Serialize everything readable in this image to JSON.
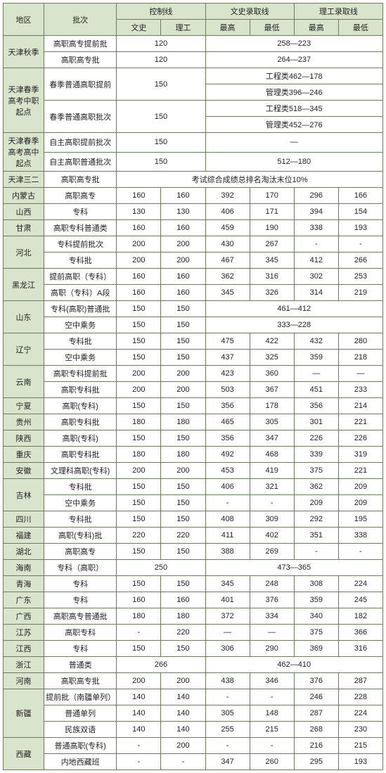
{
  "headers": {
    "region": "地区",
    "batch": "批次",
    "control": "控制线",
    "liberal_line": "文史录取线",
    "science_line": "理工录取线",
    "liberal": "文史",
    "science": "理工",
    "high": "最高",
    "low": "最低"
  },
  "colors": {
    "header_bg": "#d9e4cd",
    "border": "#6c7a5d",
    "text": "#222222",
    "bg": "#ffffff"
  },
  "font_size": 11,
  "rows": [
    {
      "type": "region",
      "region": "天津秋季",
      "rowspan": 2,
      "batch": "高职高专提前批",
      "ctrl_span": 2,
      "ctrl": "120",
      "lib_span": 4,
      "lib": "258—223"
    },
    {
      "type": "sub",
      "batch": "高职高专批",
      "ctrl_span": 2,
      "ctrl": "120",
      "lib_span": 4,
      "lib": "264—237"
    },
    {
      "type": "region",
      "region": "天津春季高考中职起点",
      "rowspan": 4,
      "batch": "春季普通高职提前",
      "batch_rs": 2,
      "ctrl_span": 2,
      "ctrl": "150",
      "ctrl_rs": 2,
      "lib_span": 4,
      "lib": "工程类462—178"
    },
    {
      "type": "libonly",
      "lib_span": 4,
      "lib": "管理类396—246"
    },
    {
      "type": "sub",
      "batch": "春季普通高职批次",
      "batch_rs": 2,
      "ctrl_span": 2,
      "ctrl": "150",
      "ctrl_rs": 2,
      "lib_span": 4,
      "lib": "工程类518—345"
    },
    {
      "type": "libonly",
      "lib_span": 4,
      "lib": "管理类452—276"
    },
    {
      "type": "region",
      "region": "天津春季高考高中起点",
      "rowspan": 2,
      "batch": "自主高职提前批次",
      "ctrl_span": 2,
      "ctrl": "150",
      "lib_span": 4,
      "lib": "—"
    },
    {
      "type": "sub",
      "batch": "自主高职普通批次",
      "ctrl_span": 2,
      "ctrl": "150",
      "lib_span": 4,
      "lib": "512—180"
    },
    {
      "type": "region",
      "region": "天津三二",
      "rowspan": 1,
      "batch": "高职高专批",
      "full_span": 6,
      "full": "考试综合成绩总排名淘汰末位10%"
    },
    {
      "type": "data",
      "region": "内蒙古",
      "region_hdr": true,
      "batch": "高职高专",
      "c": [
        "160",
        "160",
        "392",
        "170",
        "296",
        "166"
      ]
    },
    {
      "type": "data",
      "region": "山西",
      "batch": "专科",
      "c": [
        "130",
        "130",
        "406",
        "171",
        "394",
        "154"
      ]
    },
    {
      "type": "data",
      "region": "甘肃",
      "region_hdr": true,
      "batch": "高职专科普通类",
      "c": [
        "160",
        "160",
        "459",
        "190",
        "338",
        "193"
      ]
    },
    {
      "type": "region",
      "region": "河北",
      "rowspan": 2,
      "batch": "专科提前批次",
      "cells": [
        "200",
        "200",
        "430",
        "267",
        "-",
        "-"
      ]
    },
    {
      "type": "sub",
      "batch": "专科批",
      "cells": [
        "200",
        "200",
        "467",
        "345",
        "412",
        "266"
      ]
    },
    {
      "type": "region",
      "region": "黑龙江",
      "region_hdr": true,
      "rowspan": 2,
      "batch": "提前高职（专科）",
      "cells": [
        "160",
        "160",
        "362",
        "316",
        "302",
        "253"
      ]
    },
    {
      "type": "sub",
      "batch": "高职（专科）A段",
      "cells": [
        "160",
        "160",
        "345",
        "326",
        "314",
        "219"
      ]
    },
    {
      "type": "region",
      "region": "山东",
      "rowspan": 2,
      "batch": "专科(高职)普通批",
      "cells2": [
        "150",
        "150"
      ],
      "lib_span": 4,
      "lib": "461—412"
    },
    {
      "type": "sub",
      "batch": "空中乘务",
      "cells2": [
        "150",
        "150"
      ],
      "lib_span": 4,
      "lib": "333—228"
    },
    {
      "type": "region",
      "region": "辽宁",
      "region_hdr": true,
      "rowspan": 2,
      "batch": "专科批",
      "cells": [
        "150",
        "150",
        "475",
        "422",
        "432",
        "280"
      ]
    },
    {
      "type": "sub",
      "batch": "空中乘务",
      "cells": [
        "150",
        "150",
        "437",
        "325",
        "359",
        "218"
      ]
    },
    {
      "type": "region",
      "region": "云南",
      "rowspan": 2,
      "batch": "高职专科提前批",
      "cells": [
        "200",
        "200",
        "423",
        "360",
        "—",
        "—"
      ]
    },
    {
      "type": "sub",
      "batch": "高职专科批",
      "cells": [
        "200",
        "200",
        "503",
        "367",
        "451",
        "233"
      ]
    },
    {
      "type": "data",
      "region": "宁夏",
      "region_hdr": true,
      "batch": "高职(专科)",
      "c": [
        "150",
        "150",
        "356",
        "178",
        "356",
        "214"
      ]
    },
    {
      "type": "data",
      "region": "贵州",
      "batch": "高职专科批",
      "c": [
        "180",
        "180",
        "465",
        "305",
        "301",
        "221"
      ]
    },
    {
      "type": "data",
      "region": "陕西",
      "region_hdr": true,
      "batch": "高职(专科)",
      "c": [
        "150",
        "150",
        "356",
        "347",
        "226",
        "226"
      ]
    },
    {
      "type": "data",
      "region": "重庆",
      "batch": "高职专科批",
      "c": [
        "180",
        "180",
        "492",
        "468",
        "339",
        "319"
      ]
    },
    {
      "type": "data",
      "region": "安徽",
      "region_hdr": true,
      "batch": "文理科高职(专科)",
      "c": [
        "200",
        "200",
        "453",
        "419",
        "375",
        "221"
      ]
    },
    {
      "type": "region",
      "region": "吉林",
      "rowspan": 2,
      "batch": "专科批",
      "cells": [
        "150",
        "150",
        "406",
        "321",
        "362",
        "209"
      ]
    },
    {
      "type": "sub",
      "batch": "空中乘务",
      "cells": [
        "150",
        "150",
        "-",
        "-",
        "209",
        "209"
      ]
    },
    {
      "type": "data",
      "region": "四川",
      "region_hdr": true,
      "batch": "专科批",
      "c": [
        "150",
        "150",
        "408",
        "309",
        "292",
        "195"
      ]
    },
    {
      "type": "data",
      "region": "福建",
      "batch": "高职(专科)批",
      "c": [
        "220",
        "220",
        "411",
        "402",
        "351",
        "338"
      ]
    },
    {
      "type": "data",
      "region": "湖北",
      "region_hdr": true,
      "batch": "高职高专",
      "c": [
        "150",
        "150",
        "388",
        "269",
        "-",
        "-"
      ]
    },
    {
      "type": "hainan",
      "region": "海南",
      "batch": "专科（高职）",
      "ctrl_span": 2,
      "ctrl": "250",
      "lib_span": 4,
      "lib": "473—365"
    },
    {
      "type": "data",
      "region": "青海",
      "region_hdr": true,
      "batch": "专科",
      "c": [
        "150",
        "150",
        "345",
        "248",
        "308",
        "224"
      ]
    },
    {
      "type": "data",
      "region": "广东",
      "batch": "专科",
      "c": [
        "160",
        "160",
        "401",
        "376",
        "359",
        "245"
      ]
    },
    {
      "type": "data",
      "region": "广西",
      "region_hdr": true,
      "batch": "高职高专普通批",
      "c": [
        "180",
        "180",
        "372",
        "334",
        "340",
        "182"
      ]
    },
    {
      "type": "data",
      "region": "江苏",
      "batch": "高职专科",
      "c": [
        "-",
        "220",
        "—",
        "—",
        "375",
        "366"
      ]
    },
    {
      "type": "data",
      "region": "江西",
      "region_hdr": true,
      "batch": "专科",
      "c": [
        "150",
        "150",
        "306",
        "290",
        "369",
        "316"
      ]
    },
    {
      "type": "hainan",
      "region": "浙江",
      "batch": "普通类",
      "ctrl_span": 2,
      "ctrl": "266",
      "lib_span": 4,
      "lib": "462—410"
    },
    {
      "type": "data",
      "region": "河南",
      "region_hdr": true,
      "batch": "高职高专批",
      "c": [
        "200",
        "200",
        "438",
        "346",
        "376",
        "287"
      ]
    },
    {
      "type": "region",
      "region": "新疆",
      "rowspan": 3,
      "batch": "提前批（南疆单列）",
      "cells": [
        "140",
        "140",
        "-",
        "-",
        "246",
        "228"
      ]
    },
    {
      "type": "sub",
      "batch": "普通单列",
      "cells": [
        "140",
        "140",
        "305",
        "148",
        "287",
        "224"
      ]
    },
    {
      "type": "sub",
      "batch": "民族双语",
      "cells": [
        "140",
        "140",
        "255",
        "215",
        "268",
        "230"
      ]
    },
    {
      "type": "region",
      "region": "西藏",
      "region_hdr": true,
      "rowspan": 2,
      "batch": "普通高职(专科)",
      "cells": [
        "-",
        "200",
        "-",
        "-",
        "216",
        "215"
      ]
    },
    {
      "type": "sub",
      "batch": "内地西藏班",
      "cells": [
        "-",
        "-",
        "347",
        "260",
        "295",
        "193"
      ]
    }
  ]
}
